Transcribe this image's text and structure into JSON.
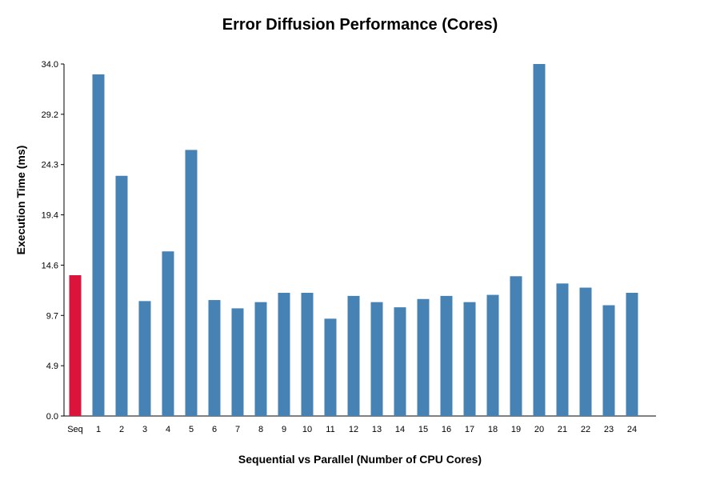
{
  "chart_data": {
    "type": "bar",
    "title": "Error Diffusion Performance (Cores)",
    "xlabel": "Sequential vs Parallel (Number of CPU Cores)",
    "ylabel": "Execution Time (ms)",
    "categories": [
      "Seq",
      "1",
      "2",
      "3",
      "4",
      "5",
      "6",
      "7",
      "8",
      "9",
      "10",
      "11",
      "12",
      "13",
      "14",
      "15",
      "16",
      "17",
      "18",
      "19",
      "20",
      "21",
      "22",
      "23",
      "24"
    ],
    "values": [
      13.6,
      33.0,
      23.2,
      11.1,
      15.9,
      25.7,
      11.2,
      10.4,
      11.0,
      11.9,
      11.9,
      9.4,
      11.6,
      11.0,
      10.5,
      11.3,
      11.6,
      11.0,
      11.7,
      13.5,
      34.0,
      12.8,
      12.4,
      10.7,
      11.9
    ],
    "ytick_labels": [
      "0.0",
      "4.9",
      "9.7",
      "14.6",
      "19.4",
      "24.3",
      "29.2",
      "34.0"
    ],
    "ylim": [
      0,
      34.0
    ],
    "grid": false,
    "legend": "none",
    "colors": {
      "sequential": "#dc143c",
      "parallel": "#4682b4",
      "axis": "#000000"
    }
  }
}
